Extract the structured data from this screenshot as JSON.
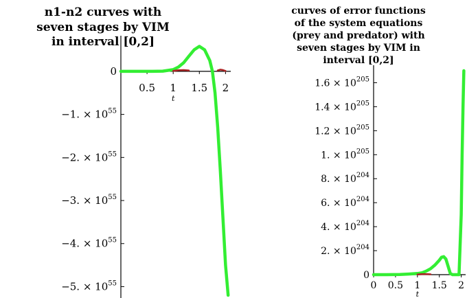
{
  "chart_data": [
    {
      "type": "line",
      "title_lines": [
        "n1-n2 curves with",
        "seven stages by VIM",
        "in interval [0,2]"
      ],
      "xlabel": "t",
      "ylabel": "",
      "xlim": [
        0,
        2.1
      ],
      "ylim": [
        -5.2e+55,
        7e+54
      ],
      "x_ticks": [
        {
          "v": 0.5,
          "label": "0.5"
        },
        {
          "v": 1.0,
          "label": "1"
        },
        {
          "v": 1.5,
          "label": "1.5"
        },
        {
          "v": 2.0,
          "label": "2"
        }
      ],
      "y_ticks": [
        {
          "v": 0,
          "mant": "0",
          "exp": ""
        },
        {
          "v": -1e+55,
          "mant": "−1. × 10",
          "exp": "55"
        },
        {
          "v": -2e+55,
          "mant": "−2. × 10",
          "exp": "55"
        },
        {
          "v": -3e+55,
          "mant": "−3. × 10",
          "exp": "55"
        },
        {
          "v": -4e+55,
          "mant": "−4. × 10",
          "exp": "55"
        },
        {
          "v": -5e+55,
          "mant": "−5. × 10",
          "exp": "55"
        }
      ],
      "grid": false,
      "series": [
        {
          "color": "#33ee33",
          "x": [
            0,
            0.3,
            0.6,
            0.8,
            1.0,
            1.1,
            1.2,
            1.3,
            1.4,
            1.5,
            1.6,
            1.7,
            1.75,
            1.8,
            1.85,
            1.9,
            1.95,
            2.0,
            2.05
          ],
          "y": [
            0,
            0,
            0,
            5e+52,
            4e+53,
            1e+54,
            2e+54,
            3.5e+54,
            5e+54,
            5.8e+54,
            5e+54,
            2.5e+54,
            0.0,
            -5e+54,
            -1.3e+55,
            -2.3e+55,
            -3.4e+55,
            -4.5e+55,
            -5.2e+55
          ]
        },
        {
          "color": "#aa2222",
          "x": [
            1.0,
            1.1,
            1.2,
            1.3
          ],
          "y": [
            1e+53,
            2.5e+53,
            3e+53,
            2e+53
          ]
        },
        {
          "color": "#aa2222",
          "x": [
            1.85,
            1.9,
            1.95,
            2.0
          ],
          "y": [
            2e+53,
            4e+53,
            3e+53,
            1e+53
          ]
        }
      ]
    },
    {
      "type": "line",
      "title_lines": [
        "curves of error functions",
        "of the system equations",
        "(prey and predator)  with",
        "seven stages by VIM in",
        "interval [0,2]"
      ],
      "xlabel": "t",
      "ylabel": "",
      "xlim": [
        0,
        2.1
      ],
      "ylim": [
        0,
        1.7e+205
      ],
      "x_ticks": [
        {
          "v": 0.0,
          "label": "0"
        },
        {
          "v": 0.5,
          "label": "0.5"
        },
        {
          "v": 1.0,
          "label": "1"
        },
        {
          "v": 1.5,
          "label": "1.5"
        },
        {
          "v": 2.0,
          "label": "2"
        }
      ],
      "y_ticks": [
        {
          "v": 0,
          "mant": "0",
          "exp": ""
        },
        {
          "v": 2e+204,
          "mant": "2. × 10",
          "exp": "204"
        },
        {
          "v": 4e+204,
          "mant": "4. × 10",
          "exp": "204"
        },
        {
          "v": 6e+204,
          "mant": "6. × 10",
          "exp": "204"
        },
        {
          "v": 8e+204,
          "mant": "8. × 10",
          "exp": "204"
        },
        {
          "v": 1e+205,
          "mant": "1. × 10",
          "exp": "205"
        },
        {
          "v": 1.2e+205,
          "mant": "1.2 × 10",
          "exp": "205"
        },
        {
          "v": 1.4e+205,
          "mant": "1.4 × 10",
          "exp": "205"
        },
        {
          "v": 1.6e+205,
          "mant": "1.6 × 10",
          "exp": "205"
        }
      ],
      "grid": false,
      "series": [
        {
          "color": "#33ee33",
          "x": [
            0,
            0.3,
            0.6,
            0.8,
            1.0,
            1.1,
            1.2,
            1.3,
            1.4,
            1.5,
            1.55,
            1.6,
            1.65,
            1.7,
            1.75,
            1.8,
            1.85,
            1.9,
            1.95,
            2.0,
            2.02,
            2.04,
            2.06
          ],
          "y": [
            0,
            0,
            2e+202,
            5e+202,
            1e+203,
            1.5e+203,
            3e+203,
            5e+203,
            8e+203,
            1.2e+204,
            1.45e+204,
            1.5e+204,
            1.3e+204,
            7e+203,
            1e+203,
            0.0,
            0.0,
            0.0,
            0.0,
            5e+204,
            1e+205,
            1.4e+205,
            1.7e+205
          ]
        },
        {
          "color": "#aa2222",
          "x": [
            1.0,
            1.1,
            1.2,
            1.3
          ],
          "y": [
            2e+202,
            4e+202,
            5e+202,
            3e+202
          ]
        }
      ]
    }
  ]
}
